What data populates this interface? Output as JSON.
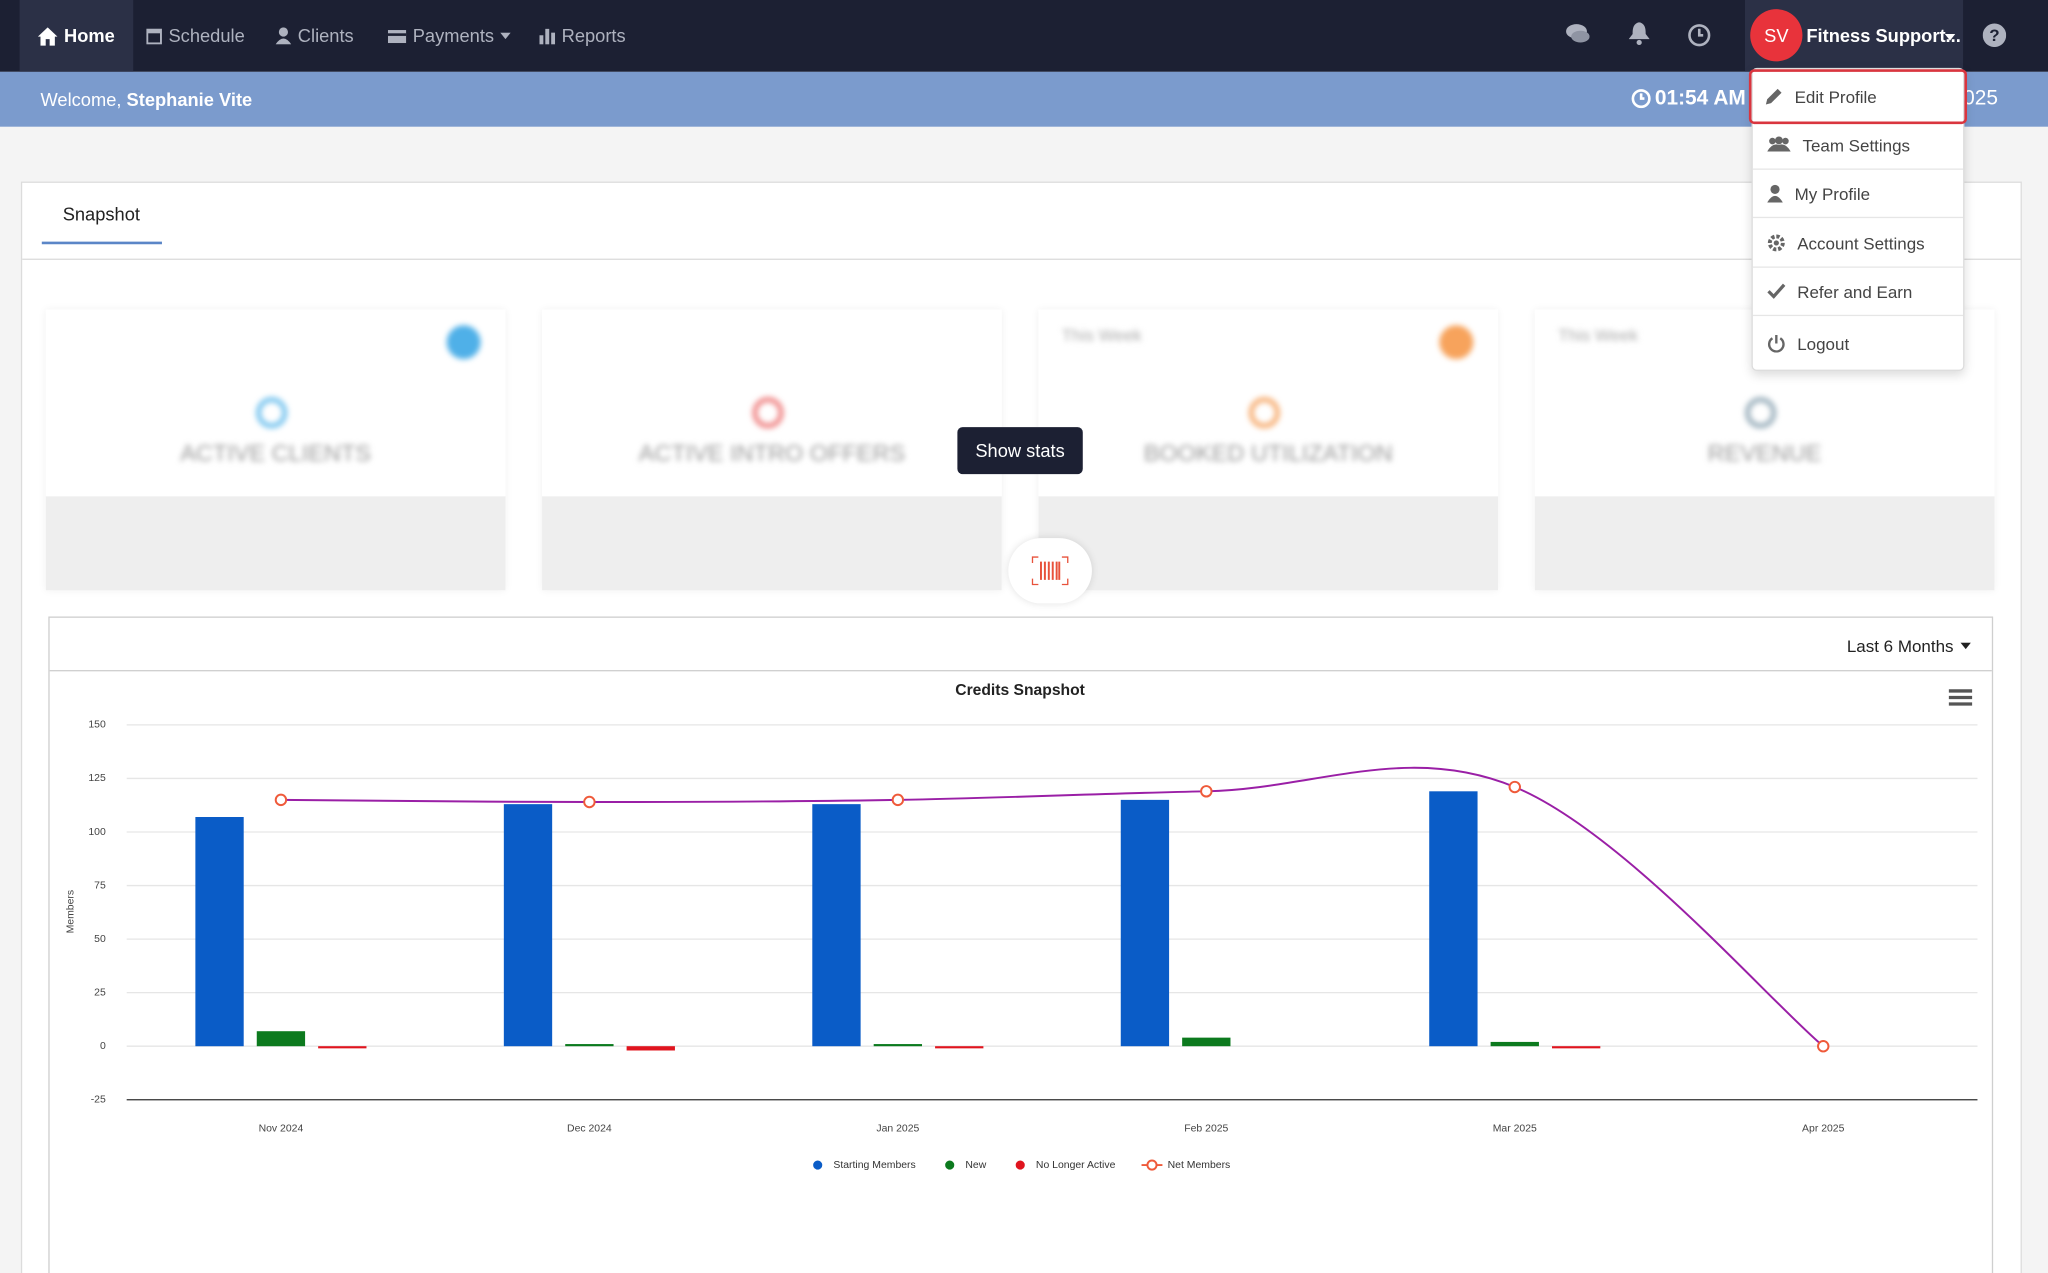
{
  "nav": {
    "items": [
      "Home",
      "Schedule",
      "Clients",
      "Payments",
      "Reports"
    ],
    "user_initials": "SV",
    "user_name": "Fitness Support..."
  },
  "banner": {
    "welcome": "Welcome,",
    "name": "Stephanie Vite",
    "time": "01:54 AM",
    "date_fragment": "025"
  },
  "user_menu": {
    "items": [
      "Edit Profile",
      "Team Settings",
      "My Profile",
      "Account Settings",
      "Refer and Earn",
      "Logout"
    ]
  },
  "tabs": [
    "Snapshot"
  ],
  "cards": [
    {
      "title": "ACTIVE CLIENTS"
    },
    {
      "title": "ACTIVE INTRO OFFERS"
    },
    {
      "title": "BOOKED UTILIZATION",
      "period": "This Week"
    },
    {
      "title": "REVENUE",
      "period": "This Week"
    }
  ],
  "show_stats": "Show stats",
  "range_select": "Last 6 Months",
  "chart_data": {
    "type": "bar",
    "title": "Credits Snapshot",
    "y_label": "Members",
    "categories": [
      "Nov 2024",
      "Dec 2024",
      "Jan 2025",
      "Feb 2025",
      "Mar 2025",
      "Apr 2025"
    ],
    "series": [
      {
        "name": "Starting Members",
        "color": "#0a5cc7",
        "values": [
          107,
          113,
          113,
          115,
          119,
          null
        ]
      },
      {
        "name": "New",
        "color": "#0c7a1e",
        "values": [
          7,
          1,
          1,
          4,
          2,
          null
        ]
      },
      {
        "name": "No Longer Active",
        "color": "#e0141e",
        "values": [
          -1,
          -2,
          -1,
          null,
          -1,
          null
        ]
      },
      {
        "name": "Net Members",
        "type": "line",
        "color": "#9a1fa6",
        "marker_color": "#ef5a3a",
        "values": [
          115,
          114,
          115,
          119,
          121,
          0
        ]
      }
    ],
    "ylim": [
      -25,
      150
    ],
    "yticks": [
      -25,
      0,
      25,
      50,
      75,
      100,
      125,
      150
    ],
    "grid": true,
    "legend": "bottom"
  }
}
